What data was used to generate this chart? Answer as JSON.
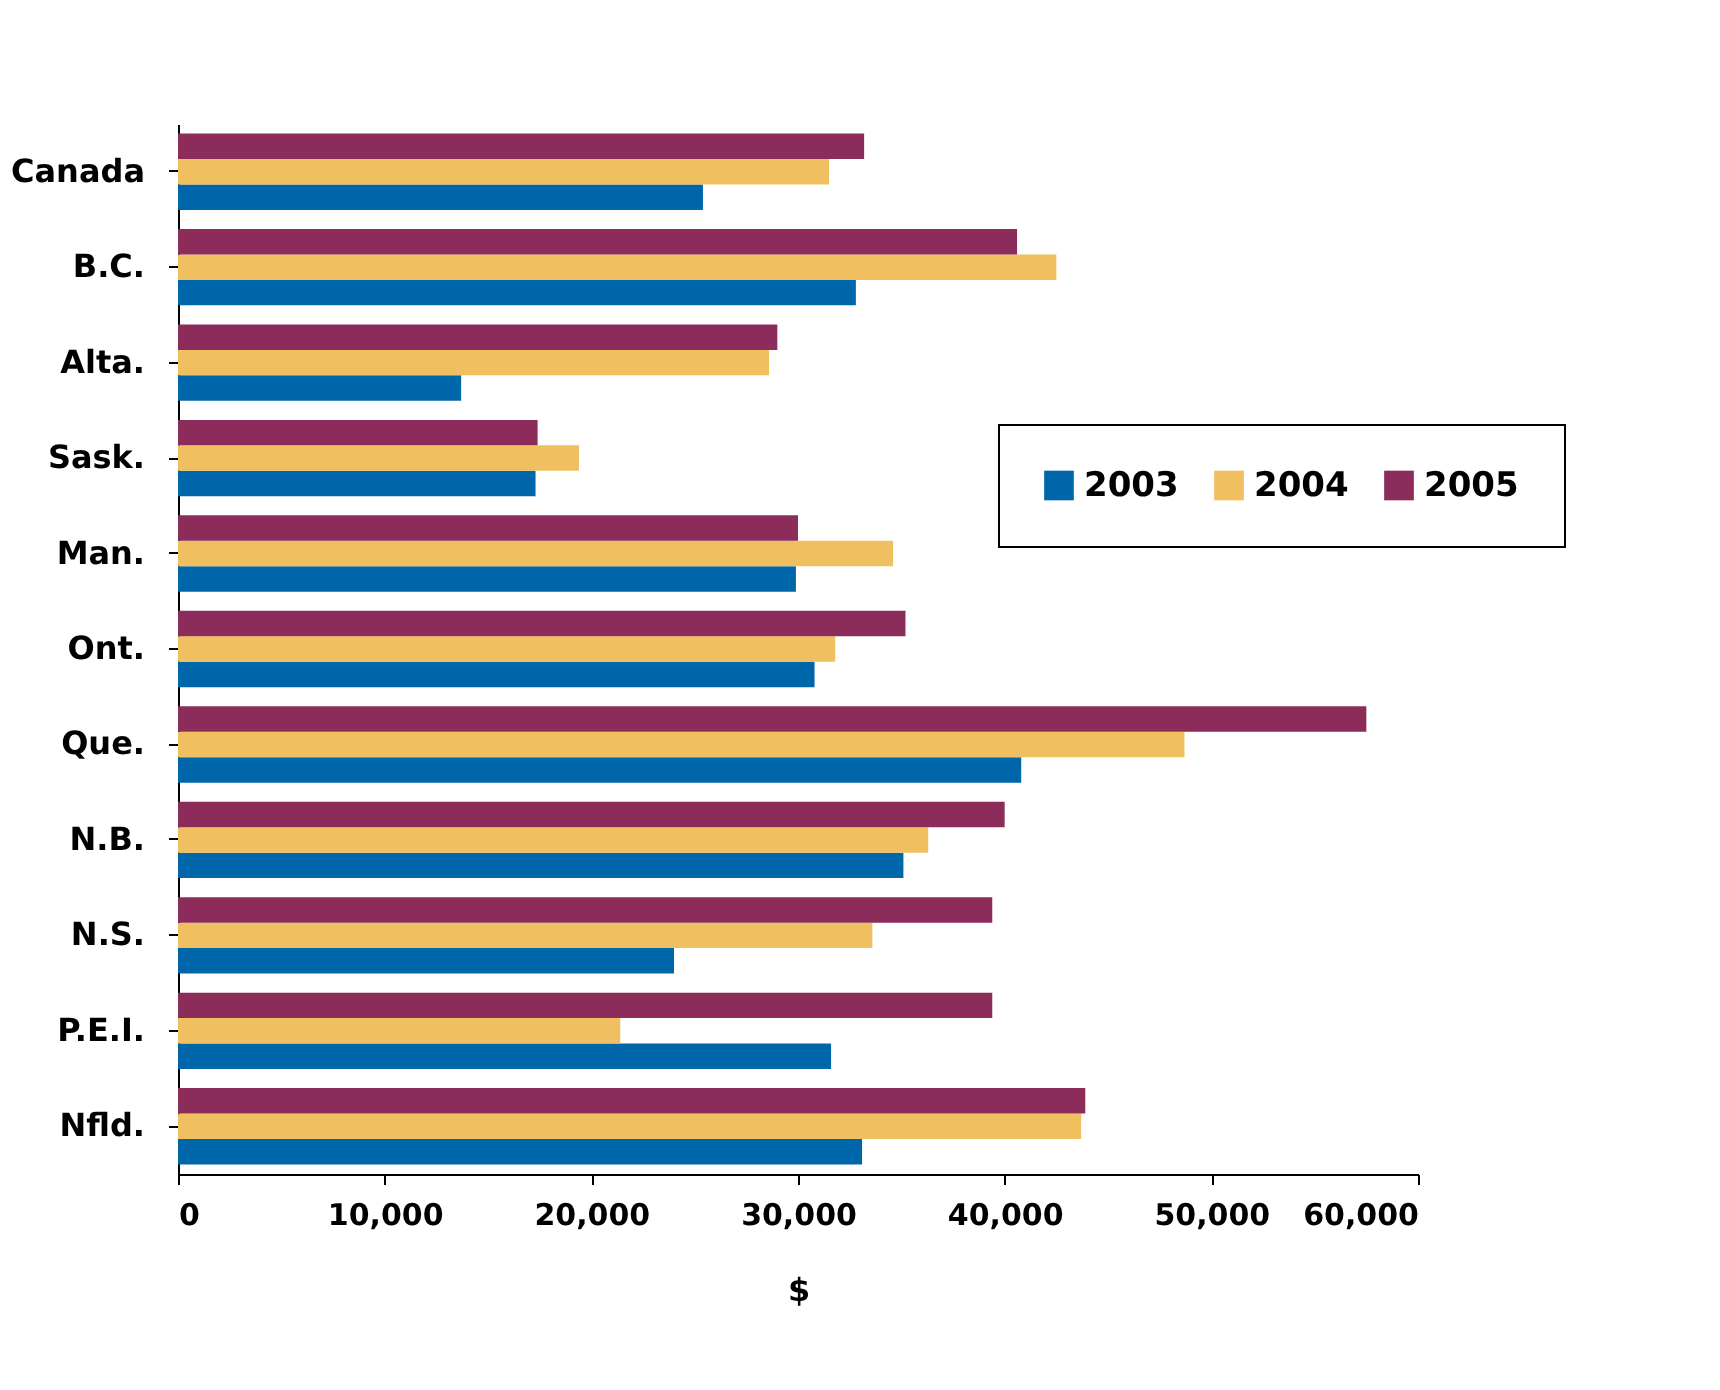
{
  "chart_data": {
    "type": "bar",
    "orientation": "horizontal",
    "xlabel": "$",
    "categories": [
      "Canada",
      "B.C.",
      "Alta.",
      "Sask.",
      "Man.",
      "Ont.",
      "Que.",
      "N.B.",
      "N.S.",
      "P.E.I.",
      "Nfld."
    ],
    "series": [
      {
        "name": "2003",
        "color": "#0066aa",
        "values": [
          25400,
          32800,
          13700,
          17300,
          29900,
          30800,
          40800,
          35100,
          24000,
          31600,
          33100
        ]
      },
      {
        "name": "2004",
        "color": "#f0c060",
        "values": [
          31500,
          42500,
          28600,
          19400,
          34600,
          31800,
          48700,
          36300,
          33600,
          21400,
          43700
        ]
      },
      {
        "name": "2005",
        "color": "#8b2c5a",
        "values": [
          33200,
          40600,
          29000,
          17400,
          30000,
          35200,
          57500,
          40000,
          39400,
          39400,
          43900
        ]
      }
    ],
    "xlim": [
      0,
      60000
    ],
    "xticks": [
      0,
      {
        "value": 10000,
        "label": "10,000"
      },
      {
        "value": 20000,
        "label": "20,000"
      },
      {
        "value": 30000,
        "label": "30,000"
      },
      {
        "value": 40000,
        "label": "40,000"
      },
      {
        "value": 50000,
        "label": "50,000"
      },
      {
        "value": 60000,
        "label": "60,000"
      }
    ],
    "grid": false,
    "legend": "right"
  }
}
